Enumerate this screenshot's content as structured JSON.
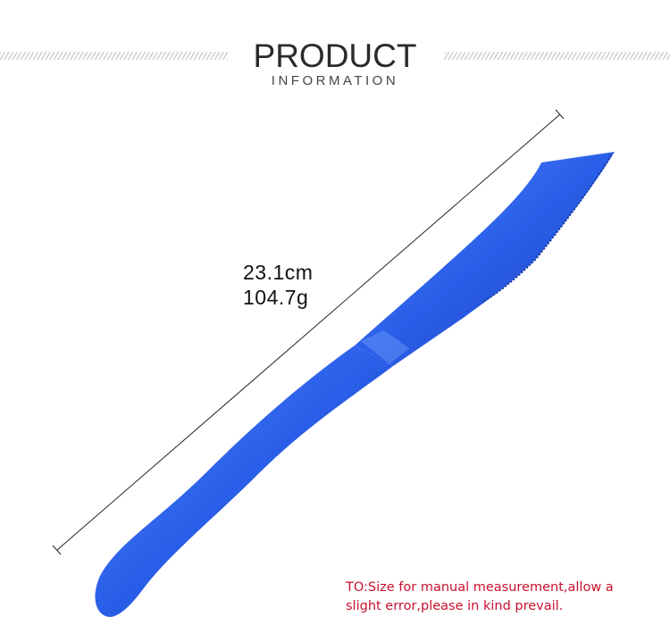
{
  "header": {
    "title": "PRODUCT",
    "subtitle": "INFORMATION"
  },
  "product": {
    "length": "23.1cm",
    "weight": "104.7g",
    "color": "#2a5ee8"
  },
  "note": {
    "line1": "TO:Size for manual measurement,allow a",
    "line2": "slight error,please in kind prevail."
  }
}
